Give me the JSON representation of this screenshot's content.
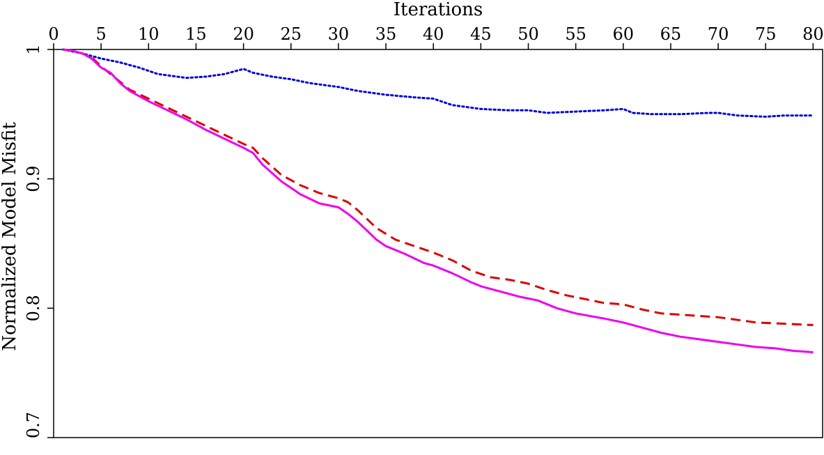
{
  "chart_data": {
    "type": "line",
    "xlabel": "Iterations",
    "ylabel": "Normalized Model Misfit",
    "xlim": [
      0,
      81
    ],
    "ylim": [
      0.7,
      1.0
    ],
    "x_axis_position": "top",
    "x_ticks": [
      0,
      5,
      10,
      15,
      20,
      25,
      30,
      35,
      40,
      45,
      50,
      55,
      60,
      65,
      70,
      75,
      80
    ],
    "x_tick_labels": [
      "0",
      "5",
      "10",
      "15",
      "20",
      "25",
      "30",
      "35",
      "40",
      "45",
      "50",
      "55",
      "60",
      "65",
      "70",
      "75",
      "80"
    ],
    "y_ticks": [
      0.7,
      0.8,
      0.9,
      1.0
    ],
    "y_tick_labels": [
      "0.7",
      "0.8",
      "0.9",
      "1"
    ],
    "grid": false,
    "series": [
      {
        "color": "#0000dd",
        "style": "dotted",
        "points": [
          [
            1,
            1.0
          ],
          [
            3,
            0.997
          ],
          [
            5,
            0.993
          ],
          [
            7,
            0.99
          ],
          [
            9,
            0.986
          ],
          [
            11,
            0.981
          ],
          [
            13,
            0.979
          ],
          [
            14,
            0.978
          ],
          [
            16,
            0.979
          ],
          [
            18,
            0.981
          ],
          [
            20,
            0.985
          ],
          [
            21,
            0.982
          ],
          [
            23,
            0.979
          ],
          [
            25,
            0.977
          ],
          [
            27,
            0.974
          ],
          [
            30,
            0.971
          ],
          [
            32,
            0.968
          ],
          [
            35,
            0.965
          ],
          [
            38,
            0.963
          ],
          [
            40,
            0.962
          ],
          [
            42,
            0.957
          ],
          [
            45,
            0.954
          ],
          [
            48,
            0.953
          ],
          [
            50,
            0.953
          ],
          [
            52,
            0.951
          ],
          [
            55,
            0.952
          ],
          [
            58,
            0.953
          ],
          [
            60,
            0.954
          ],
          [
            61,
            0.951
          ],
          [
            63,
            0.95
          ],
          [
            66,
            0.95
          ],
          [
            69,
            0.951
          ],
          [
            70,
            0.951
          ],
          [
            72,
            0.949
          ],
          [
            75,
            0.948
          ],
          [
            77,
            0.949
          ],
          [
            80,
            0.949
          ]
        ]
      },
      {
        "color": "#dd0000",
        "style": "dashed",
        "points": [
          [
            1,
            1.0
          ],
          [
            2,
            0.999
          ],
          [
            3,
            0.997
          ],
          [
            4,
            0.994
          ],
          [
            5,
            0.987
          ],
          [
            6,
            0.981
          ],
          [
            7,
            0.975
          ],
          [
            8,
            0.969
          ],
          [
            10,
            0.962
          ],
          [
            12,
            0.955
          ],
          [
            14,
            0.948
          ],
          [
            16,
            0.941
          ],
          [
            18,
            0.934
          ],
          [
            20,
            0.927
          ],
          [
            21,
            0.924
          ],
          [
            22,
            0.916
          ],
          [
            24,
            0.903
          ],
          [
            26,
            0.895
          ],
          [
            28,
            0.889
          ],
          [
            30,
            0.885
          ],
          [
            31,
            0.882
          ],
          [
            32,
            0.876
          ],
          [
            33,
            0.869
          ],
          [
            34,
            0.862
          ],
          [
            36,
            0.853
          ],
          [
            38,
            0.848
          ],
          [
            40,
            0.843
          ],
          [
            42,
            0.837
          ],
          [
            44,
            0.829
          ],
          [
            46,
            0.824
          ],
          [
            48,
            0.822
          ],
          [
            50,
            0.819
          ],
          [
            52,
            0.814
          ],
          [
            54,
            0.81
          ],
          [
            56,
            0.807
          ],
          [
            58,
            0.804
          ],
          [
            60,
            0.803
          ],
          [
            62,
            0.799
          ],
          [
            64,
            0.796
          ],
          [
            66,
            0.795
          ],
          [
            70,
            0.793
          ],
          [
            74,
            0.789
          ],
          [
            77,
            0.788
          ],
          [
            80,
            0.787
          ]
        ]
      },
      {
        "color": "#ee00ee",
        "style": "solid",
        "points": [
          [
            1,
            1.0
          ],
          [
            2,
            0.999
          ],
          [
            3,
            0.997
          ],
          [
            4,
            0.993
          ],
          [
            5,
            0.986
          ],
          [
            6,
            0.982
          ],
          [
            7,
            0.974
          ],
          [
            8,
            0.968
          ],
          [
            10,
            0.96
          ],
          [
            12,
            0.953
          ],
          [
            14,
            0.946
          ],
          [
            16,
            0.938
          ],
          [
            18,
            0.931
          ],
          [
            20,
            0.924
          ],
          [
            21,
            0.92
          ],
          [
            22,
            0.911
          ],
          [
            24,
            0.898
          ],
          [
            26,
            0.888
          ],
          [
            28,
            0.881
          ],
          [
            30,
            0.878
          ],
          [
            31,
            0.873
          ],
          [
            32,
            0.867
          ],
          [
            33,
            0.86
          ],
          [
            34,
            0.853
          ],
          [
            35,
            0.848
          ],
          [
            37,
            0.842
          ],
          [
            39,
            0.835
          ],
          [
            40,
            0.833
          ],
          [
            42,
            0.827
          ],
          [
            44,
            0.82
          ],
          [
            45,
            0.817
          ],
          [
            47,
            0.813
          ],
          [
            49,
            0.809
          ],
          [
            51,
            0.806
          ],
          [
            53,
            0.8
          ],
          [
            55,
            0.796
          ],
          [
            58,
            0.792
          ],
          [
            60,
            0.789
          ],
          [
            62,
            0.785
          ],
          [
            64,
            0.781
          ],
          [
            66,
            0.778
          ],
          [
            68,
            0.776
          ],
          [
            70,
            0.774
          ],
          [
            72,
            0.772
          ],
          [
            74,
            0.77
          ],
          [
            76,
            0.769
          ],
          [
            78,
            0.767
          ],
          [
            80,
            0.766
          ]
        ]
      }
    ]
  }
}
